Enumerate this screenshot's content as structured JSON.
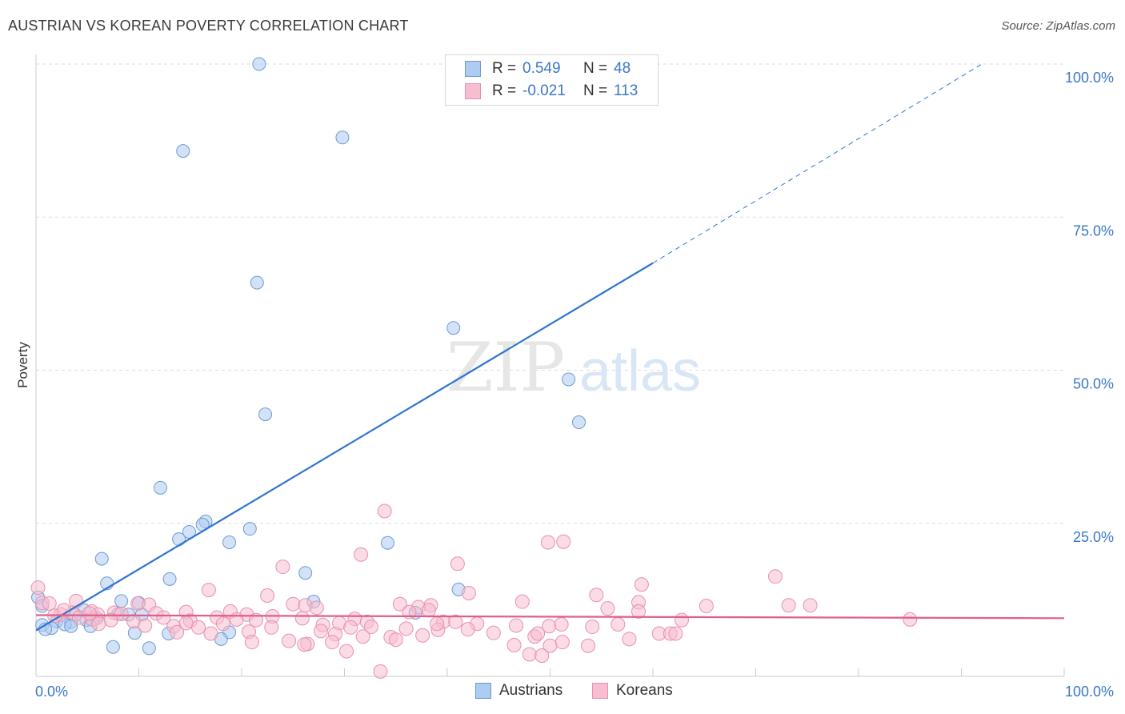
{
  "header": {
    "title": "AUSTRIAN VS KOREAN POVERTY CORRELATION CHART",
    "source": "Source: ZipAtlas.com"
  },
  "legend": {
    "austrians": {
      "r_label": "R =",
      "r_value": "0.549",
      "n_label": "N =",
      "n_value": "48"
    },
    "koreans": {
      "r_label": "R =",
      "r_value": "-0.021",
      "n_label": "N =",
      "n_value": "113"
    }
  },
  "bottom_legend": {
    "austrians": "Austrians",
    "koreans": "Koreans"
  },
  "watermark": {
    "zip": "ZIP",
    "atlas": "atlas"
  },
  "colors": {
    "austrians_fill": "#aecbf0",
    "austrians_stroke": "#6a9ad6",
    "austrians_line": "#2f74d0",
    "koreans_fill": "#f7bdd0",
    "koreans_stroke": "#e891ad",
    "koreans_line": "#e05f8a",
    "tick_text": "#3b77c7",
    "grid": "#dddddd"
  },
  "chart_data": {
    "type": "scatter",
    "title": "AUSTRIAN VS KOREAN POVERTY CORRELATION CHART",
    "xlabel": "",
    "ylabel": "Poverty",
    "xlim": [
      0,
      100
    ],
    "ylim": [
      0,
      100
    ],
    "x_tick_labels": [
      "0.0%",
      "100.0%"
    ],
    "y_tick_labels": [
      "25.0%",
      "50.0%",
      "75.0%",
      "100.0%"
    ],
    "y_ticks": [
      25,
      50,
      75,
      100
    ],
    "grid": "horizontal dashed",
    "legend_position": "top-center",
    "series": [
      {
        "name": "Austrians",
        "r": 0.549,
        "n": 48,
        "trend": {
          "x": [
            0,
            60
          ],
          "y": [
            7.5,
            67.5
          ],
          "dashed_to": [
            92,
            100
          ]
        },
        "points": [
          [
            21.7,
            100
          ],
          [
            29.8,
            88
          ],
          [
            14.3,
            85.8
          ],
          [
            21.5,
            64.3
          ],
          [
            40.6,
            56.9
          ],
          [
            51.8,
            48.5
          ],
          [
            22.3,
            42.8
          ],
          [
            52.8,
            41.5
          ],
          [
            12.1,
            30.8
          ],
          [
            16.5,
            25.3
          ],
          [
            16.2,
            24.8
          ],
          [
            20.8,
            24.1
          ],
          [
            14.9,
            23.6
          ],
          [
            13.9,
            22.4
          ],
          [
            18.8,
            21.9
          ],
          [
            34.2,
            21.8
          ],
          [
            6.4,
            19.2
          ],
          [
            13.0,
            15.9
          ],
          [
            26.2,
            16.9
          ],
          [
            6.9,
            15.2
          ],
          [
            41.1,
            14.2
          ],
          [
            0.2,
            12.9
          ],
          [
            8.3,
            12.3
          ],
          [
            27.0,
            12.2
          ],
          [
            10.0,
            12.0
          ],
          [
            0.6,
            11.5
          ],
          [
            4.7,
            10.8
          ],
          [
            8.0,
            10.2
          ],
          [
            36.9,
            10.4
          ],
          [
            10.3,
            10.1
          ],
          [
            3.8,
            10.0
          ],
          [
            9.0,
            10.1
          ],
          [
            4.9,
            9.2
          ],
          [
            5.9,
            9.5
          ],
          [
            2.0,
            9.0
          ],
          [
            3.4,
            8.9
          ],
          [
            0.6,
            8.4
          ],
          [
            2.8,
            8.5
          ],
          [
            3.4,
            8.2
          ],
          [
            1.5,
            7.9
          ],
          [
            5.3,
            8.2
          ],
          [
            0.9,
            7.7
          ],
          [
            9.6,
            7.1
          ],
          [
            12.9,
            7.0
          ],
          [
            18.8,
            7.2
          ],
          [
            18.0,
            6.1
          ],
          [
            7.5,
            4.8
          ],
          [
            11.0,
            4.6
          ]
        ]
      },
      {
        "name": "Koreans",
        "r": -0.021,
        "n": 113,
        "trend": {
          "x": [
            0,
            100
          ],
          "y": [
            10.0,
            9.5
          ]
        },
        "points": [
          [
            33.9,
            27.0
          ],
          [
            31.6,
            19.9
          ],
          [
            51.3,
            22.0
          ],
          [
            49.8,
            21.9
          ],
          [
            41.0,
            18.4
          ],
          [
            24.0,
            17.9
          ],
          [
            71.9,
            16.3
          ],
          [
            58.9,
            15.0
          ],
          [
            16.8,
            14.1
          ],
          [
            42.1,
            13.6
          ],
          [
            22.5,
            13.2
          ],
          [
            54.5,
            13.3
          ],
          [
            0.2,
            14.5
          ],
          [
            0.6,
            12.0
          ],
          [
            1.3,
            11.9
          ],
          [
            3.9,
            12.3
          ],
          [
            9.9,
            11.9
          ],
          [
            11.0,
            11.7
          ],
          [
            25.0,
            11.8
          ],
          [
            26.2,
            11.6
          ],
          [
            35.4,
            11.8
          ],
          [
            37.2,
            11.3
          ],
          [
            38.4,
            11.6
          ],
          [
            47.3,
            12.2
          ],
          [
            55.6,
            11.1
          ],
          [
            58.6,
            12.1
          ],
          [
            65.2,
            11.5
          ],
          [
            73.2,
            11.6
          ],
          [
            75.3,
            11.6
          ],
          [
            85.0,
            9.3
          ],
          [
            2.4,
            10.1
          ],
          [
            3.6,
            10.4
          ],
          [
            5.4,
            10.6
          ],
          [
            6.0,
            10.1
          ],
          [
            7.6,
            10.4
          ],
          [
            8.3,
            10.2
          ],
          [
            11.7,
            10.3
          ],
          [
            14.6,
            10.5
          ],
          [
            18.9,
            10.6
          ],
          [
            20.5,
            10.1
          ],
          [
            23.0,
            9.8
          ],
          [
            27.3,
            11.2
          ],
          [
            31.0,
            9.4
          ],
          [
            36.3,
            10.5
          ],
          [
            38.2,
            10.8
          ],
          [
            58.6,
            10.6
          ],
          [
            62.8,
            9.2
          ],
          [
            1.8,
            9.9
          ],
          [
            4.2,
            9.6
          ],
          [
            5.5,
            9.3
          ],
          [
            7.3,
            9.2
          ],
          [
            9.5,
            9.0
          ],
          [
            12.4,
            9.6
          ],
          [
            15.0,
            9.1
          ],
          [
            17.6,
            9.6
          ],
          [
            19.5,
            9.3
          ],
          [
            21.4,
            9.2
          ],
          [
            25.9,
            9.5
          ],
          [
            29.5,
            8.7
          ],
          [
            32.2,
            8.9
          ],
          [
            39.6,
            8.9
          ],
          [
            42.9,
            8.6
          ],
          [
            46.7,
            8.3
          ],
          [
            49.9,
            8.2
          ],
          [
            51.1,
            8.5
          ],
          [
            54.1,
            8.1
          ],
          [
            56.6,
            8.5
          ],
          [
            6.1,
            8.6
          ],
          [
            10.6,
            8.3
          ],
          [
            13.4,
            8.2
          ],
          [
            14.6,
            8.7
          ],
          [
            15.8,
            8.0
          ],
          [
            18.2,
            8.6
          ],
          [
            22.9,
            8.0
          ],
          [
            27.9,
            8.4
          ],
          [
            30.6,
            8.0
          ],
          [
            32.6,
            8.1
          ],
          [
            36.0,
            7.8
          ],
          [
            39.1,
            7.6
          ],
          [
            44.5,
            7.1
          ],
          [
            48.5,
            6.5
          ],
          [
            48.8,
            7.0
          ],
          [
            57.7,
            6.1
          ],
          [
            60.6,
            7.0
          ],
          [
            61.7,
            7.0
          ],
          [
            62.2,
            7.0
          ],
          [
            13.7,
            7.2
          ],
          [
            17.0,
            7.0
          ],
          [
            20.7,
            7.3
          ],
          [
            27.7,
            7.4
          ],
          [
            29.1,
            6.9
          ],
          [
            34.5,
            6.4
          ],
          [
            37.6,
            6.7
          ],
          [
            39.0,
            8.6
          ],
          [
            40.8,
            8.9
          ],
          [
            42.0,
            7.7
          ],
          [
            21.0,
            5.6
          ],
          [
            24.6,
            5.8
          ],
          [
            26.4,
            5.3
          ],
          [
            28.8,
            5.6
          ],
          [
            31.8,
            6.5
          ],
          [
            35.0,
            6.0
          ],
          [
            50.0,
            5.0
          ],
          [
            51.2,
            5.6
          ],
          [
            53.7,
            5.0
          ],
          [
            30.2,
            4.1
          ],
          [
            46.5,
            5.1
          ],
          [
            48.0,
            3.6
          ],
          [
            49.2,
            3.4
          ],
          [
            26.1,
            5.2
          ],
          [
            33.5,
            0.8
          ],
          [
            2.7,
            10.8
          ],
          [
            5.2,
            10.3
          ]
        ]
      }
    ]
  }
}
